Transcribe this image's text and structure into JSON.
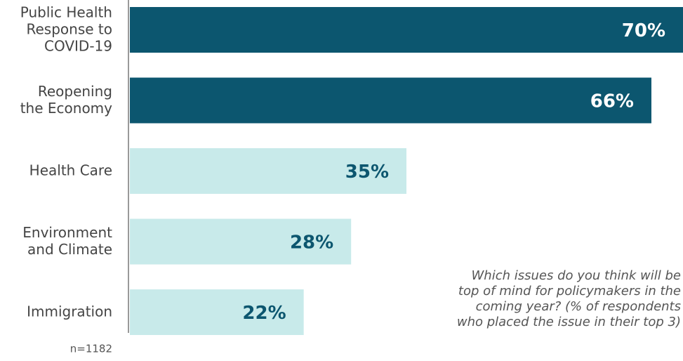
{
  "chart_data": {
    "type": "bar",
    "orientation": "horizontal",
    "categories": [
      "Public Health\nResponse to\nCOVID-19",
      "Reopening\nthe Economy",
      "Health Care",
      "Environment\nand Climate",
      "Immigration"
    ],
    "values": [
      70,
      66,
      35,
      28,
      22
    ],
    "value_labels": [
      "70%",
      "66%",
      "35%",
      "28%",
      "22%"
    ],
    "colors": [
      "#0c566f",
      "#0c566f",
      "#c8eaea",
      "#c8eaea",
      "#c8eaea"
    ],
    "value_label_colors": [
      "#ffffff",
      "#ffffff",
      "#0c566f",
      "#0c566f",
      "#0c566f"
    ],
    "annotation": "Which issues do you think will be\ntop of mind for policymakers in the\ncoming year? (% of respondents\nwho placed the issue in their top 3)",
    "footnote": "n=1182"
  }
}
